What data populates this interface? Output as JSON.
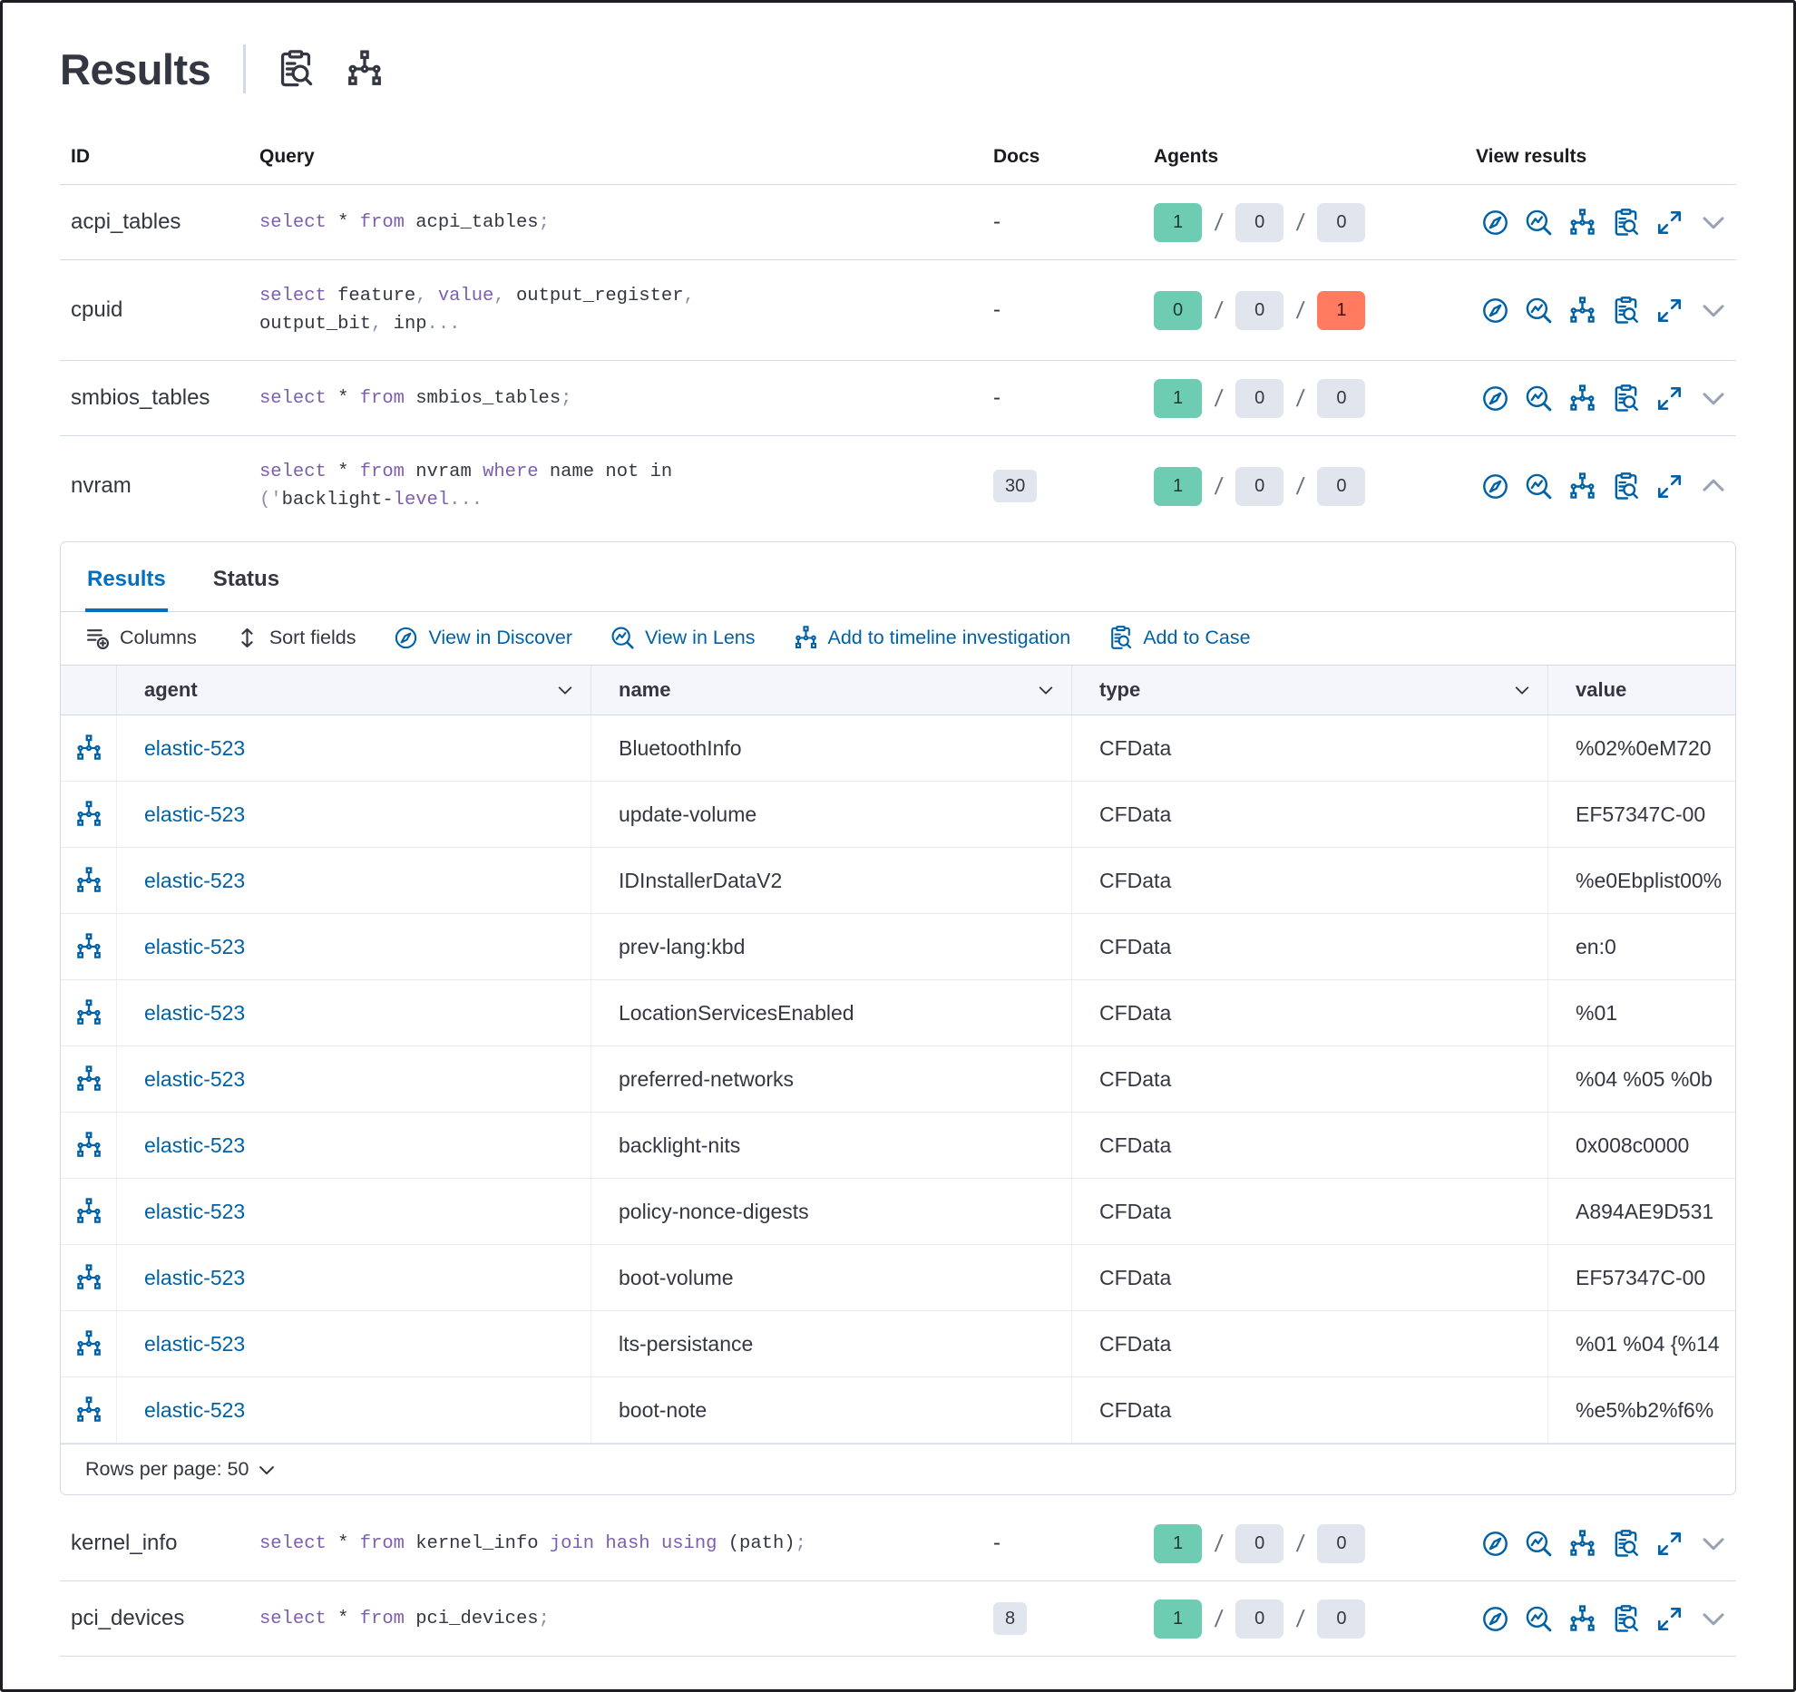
{
  "header": {
    "title": "Results",
    "icons": [
      "inspect-icon",
      "timeline-icon"
    ]
  },
  "queries": {
    "columns": {
      "id": "ID",
      "query": "Query",
      "docs": "Docs",
      "agents": "Agents",
      "view": "View results"
    },
    "action_labels": [
      "View in Discover",
      "View in Lens",
      "Add to timeline",
      "Add to Case",
      "Expand"
    ],
    "rows": [
      {
        "id": "acpi_tables",
        "docs": "-",
        "docs_badge": false,
        "expanded": false,
        "query": [
          [
            {
              "t": "select",
              "k": "kw"
            },
            {
              "t": " * ",
              "k": "pl"
            },
            {
              "t": "from",
              "k": "kw"
            },
            {
              "t": " acpi_tables",
              "k": "pl"
            },
            {
              "t": ";",
              "k": "pu"
            }
          ]
        ],
        "agents": [
          {
            "v": "1",
            "c": "green"
          },
          {
            "v": "0",
            "c": "gray"
          },
          {
            "v": "0",
            "c": "gray"
          }
        ]
      },
      {
        "id": "cpuid",
        "docs": "-",
        "docs_badge": false,
        "expanded": false,
        "query": [
          [
            {
              "t": "select",
              "k": "kw"
            },
            {
              "t": " feature",
              "k": "pl"
            },
            {
              "t": ", ",
              "k": "pu"
            },
            {
              "t": "value",
              "k": "kw"
            },
            {
              "t": ", ",
              "k": "pu"
            },
            {
              "t": "output_register",
              "k": "pl"
            },
            {
              "t": ",",
              "k": "pu"
            }
          ],
          [
            {
              "t": "output_bit",
              "k": "pl"
            },
            {
              "t": ", ",
              "k": "pu"
            },
            {
              "t": "inp",
              "k": "pl"
            },
            {
              "t": "...",
              "k": "pu"
            }
          ]
        ],
        "agents": [
          {
            "v": "0",
            "c": "green"
          },
          {
            "v": "0",
            "c": "gray"
          },
          {
            "v": "1",
            "c": "red"
          }
        ]
      },
      {
        "id": "smbios_tables",
        "docs": "-",
        "docs_badge": false,
        "expanded": false,
        "query": [
          [
            {
              "t": "select",
              "k": "kw"
            },
            {
              "t": " * ",
              "k": "pl"
            },
            {
              "t": "from",
              "k": "kw"
            },
            {
              "t": " smbios_tables",
              "k": "pl"
            },
            {
              "t": ";",
              "k": "pu"
            }
          ]
        ],
        "agents": [
          {
            "v": "1",
            "c": "green"
          },
          {
            "v": "0",
            "c": "gray"
          },
          {
            "v": "0",
            "c": "gray"
          }
        ]
      },
      {
        "id": "nvram",
        "docs": "30",
        "docs_badge": true,
        "expanded": true,
        "query": [
          [
            {
              "t": "select",
              "k": "kw"
            },
            {
              "t": " * ",
              "k": "pl"
            },
            {
              "t": "from",
              "k": "kw"
            },
            {
              "t": " nvram ",
              "k": "pl"
            },
            {
              "t": "where",
              "k": "kw"
            },
            {
              "t": " name not in",
              "k": "pl"
            }
          ],
          [
            {
              "t": "('",
              "k": "pu"
            },
            {
              "t": "backlight-",
              "k": "pl"
            },
            {
              "t": "level",
              "k": "kw"
            },
            {
              "t": "...",
              "k": "pu"
            }
          ]
        ],
        "agents": [
          {
            "v": "1",
            "c": "green"
          },
          {
            "v": "0",
            "c": "gray"
          },
          {
            "v": "0",
            "c": "gray"
          }
        ]
      },
      {
        "id": "kernel_info",
        "docs": "-",
        "docs_badge": false,
        "expanded": false,
        "query": [
          [
            {
              "t": "select",
              "k": "kw"
            },
            {
              "t": " * ",
              "k": "pl"
            },
            {
              "t": "from",
              "k": "kw"
            },
            {
              "t": " kernel_info ",
              "k": "pl"
            },
            {
              "t": "join",
              "k": "kw"
            },
            {
              "t": " ",
              "k": "pl"
            },
            {
              "t": "hash",
              "k": "kw"
            },
            {
              "t": " ",
              "k": "pl"
            },
            {
              "t": "using",
              "k": "kw"
            },
            {
              "t": " (path)",
              "k": "pl"
            },
            {
              "t": ";",
              "k": "pu"
            }
          ]
        ],
        "agents": [
          {
            "v": "1",
            "c": "green"
          },
          {
            "v": "0",
            "c": "gray"
          },
          {
            "v": "0",
            "c": "gray"
          }
        ]
      },
      {
        "id": "pci_devices",
        "docs": "8",
        "docs_badge": true,
        "expanded": false,
        "query": [
          [
            {
              "t": "select",
              "k": "kw"
            },
            {
              "t": " * ",
              "k": "pl"
            },
            {
              "t": "from",
              "k": "kw"
            },
            {
              "t": " pci_devices",
              "k": "pl"
            },
            {
              "t": ";",
              "k": "pu"
            }
          ]
        ],
        "agents": [
          {
            "v": "1",
            "c": "green"
          },
          {
            "v": "0",
            "c": "gray"
          },
          {
            "v": "0",
            "c": "gray"
          }
        ]
      }
    ]
  },
  "panel": {
    "tabs": [
      {
        "label": "Results",
        "active": true
      },
      {
        "label": "Status",
        "active": false
      }
    ],
    "toolbar": [
      {
        "label": "Columns"
      },
      {
        "label": "Sort fields"
      },
      {
        "label": "View in Discover"
      },
      {
        "label": "View in Lens"
      },
      {
        "label": "Add to timeline investigation"
      },
      {
        "label": "Add to Case"
      }
    ],
    "grid": {
      "columns": [
        {
          "label": "agent",
          "sortable": true
        },
        {
          "label": "name",
          "sortable": true
        },
        {
          "label": "type",
          "sortable": true
        },
        {
          "label": "value",
          "sortable": false
        }
      ],
      "rows": [
        {
          "agent": "elastic-523",
          "name": "BluetoothInfo",
          "type": "CFData",
          "value": "%02%0eM720"
        },
        {
          "agent": "elastic-523",
          "name": "update-volume",
          "type": "CFData",
          "value": "EF57347C-00"
        },
        {
          "agent": "elastic-523",
          "name": "IDInstallerDataV2",
          "type": "CFData",
          "value": "%e0Ebplist00%"
        },
        {
          "agent": "elastic-523",
          "name": "prev-lang:kbd",
          "type": "CFData",
          "value": "en:0"
        },
        {
          "agent": "elastic-523",
          "name": "LocationServicesEnabled",
          "type": "CFData",
          "value": "%01"
        },
        {
          "agent": "elastic-523",
          "name": "preferred-networks",
          "type": "CFData",
          "value": "%04 %05 %0b"
        },
        {
          "agent": "elastic-523",
          "name": "backlight-nits",
          "type": "CFData",
          "value": "0x008c0000"
        },
        {
          "agent": "elastic-523",
          "name": "policy-nonce-digests",
          "type": "CFData",
          "value": "A894AE9D531"
        },
        {
          "agent": "elastic-523",
          "name": "boot-volume",
          "type": "CFData",
          "value": "EF57347C-00"
        },
        {
          "agent": "elastic-523",
          "name": "lts-persistance",
          "type": "CFData",
          "value": "%01 %04 {%14"
        },
        {
          "agent": "elastic-523",
          "name": "boot-note",
          "type": "CFData",
          "value": "%e5%b2%f6%"
        }
      ]
    },
    "footer": {
      "rows_per_page": "Rows per page: 50"
    }
  },
  "colors": {
    "accent_blue": "#0061a6",
    "tab_blue": "#0071c2",
    "badge_green": "#6dccb1",
    "badge_gray": "#e0e5ee",
    "badge_red": "#ff7a5f",
    "keyword_purple": "#7d5fb0",
    "border": "#d3dae6"
  }
}
